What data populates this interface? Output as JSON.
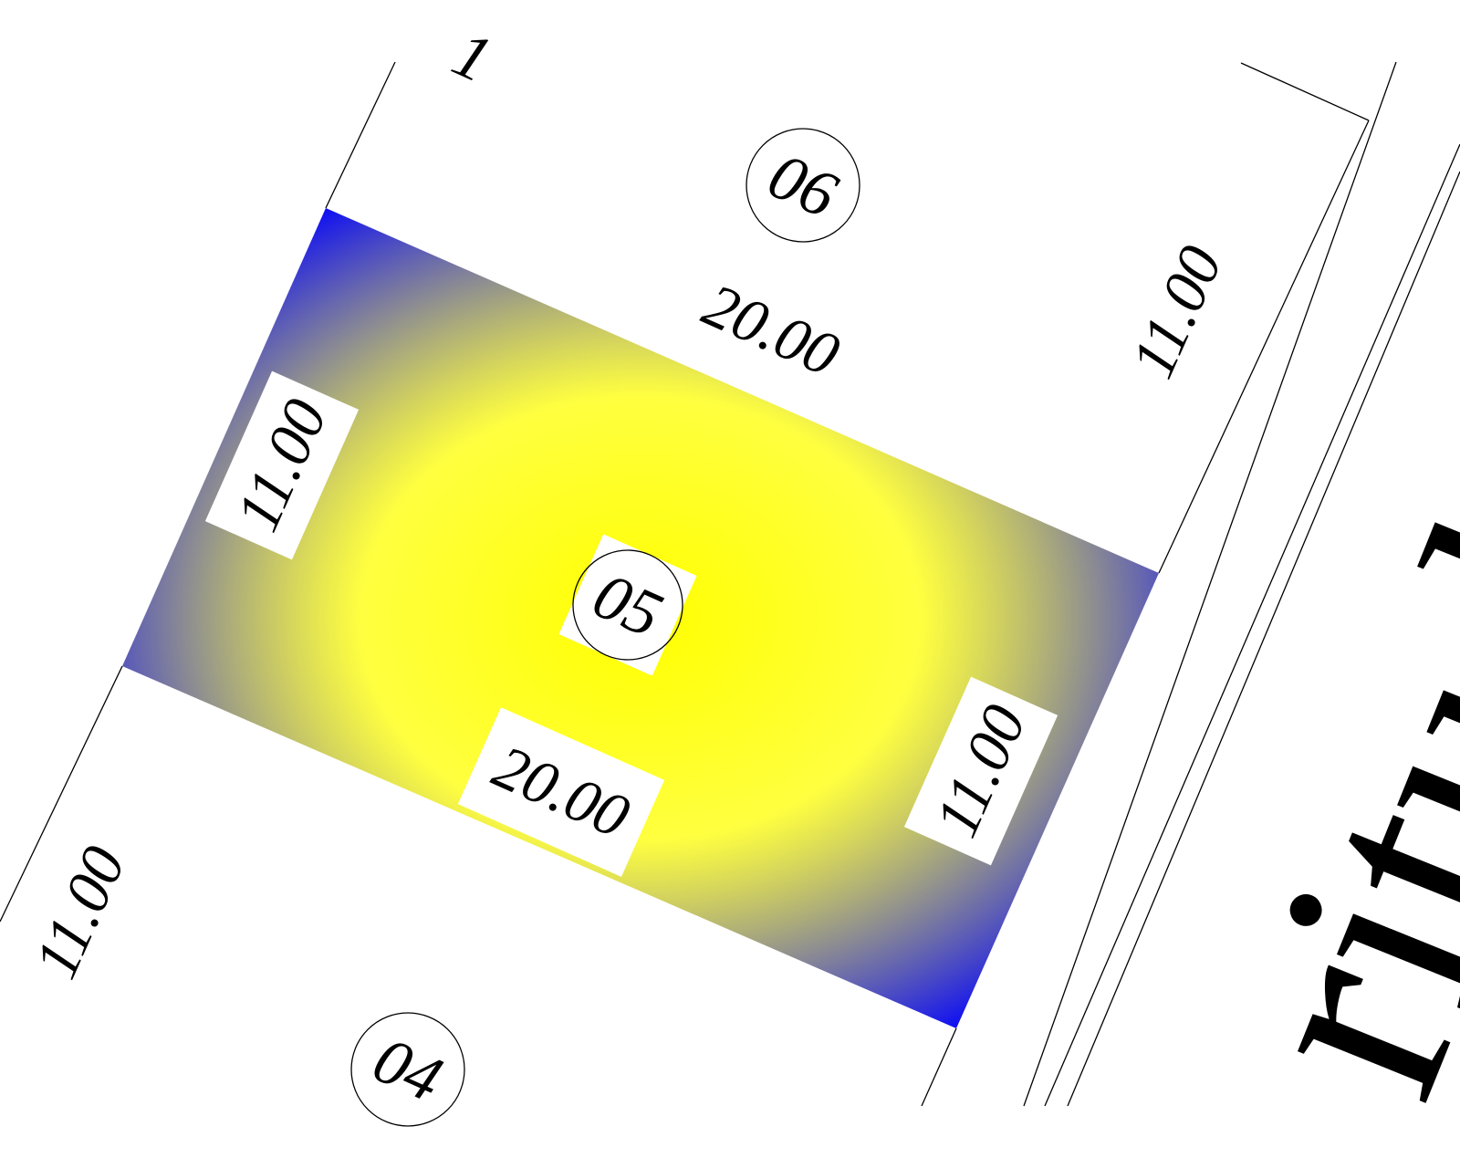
{
  "colors": {
    "lot_edge": "#0000ff",
    "lot_center": "#ffff00",
    "ink": "#000000",
    "background": "#ffffff"
  },
  "lots": {
    "highlighted": "05",
    "north": "06",
    "south": "04",
    "partial_top": "1"
  },
  "dimensions": {
    "highlighted_left": "11.00",
    "highlighted_right": "11.00",
    "highlighted_bottom": "20.00",
    "top_edge": "20.00",
    "north_lot_side": "11.00",
    "south_lot_side": "11.00"
  },
  "street": {
    "name": "ritudi"
  }
}
